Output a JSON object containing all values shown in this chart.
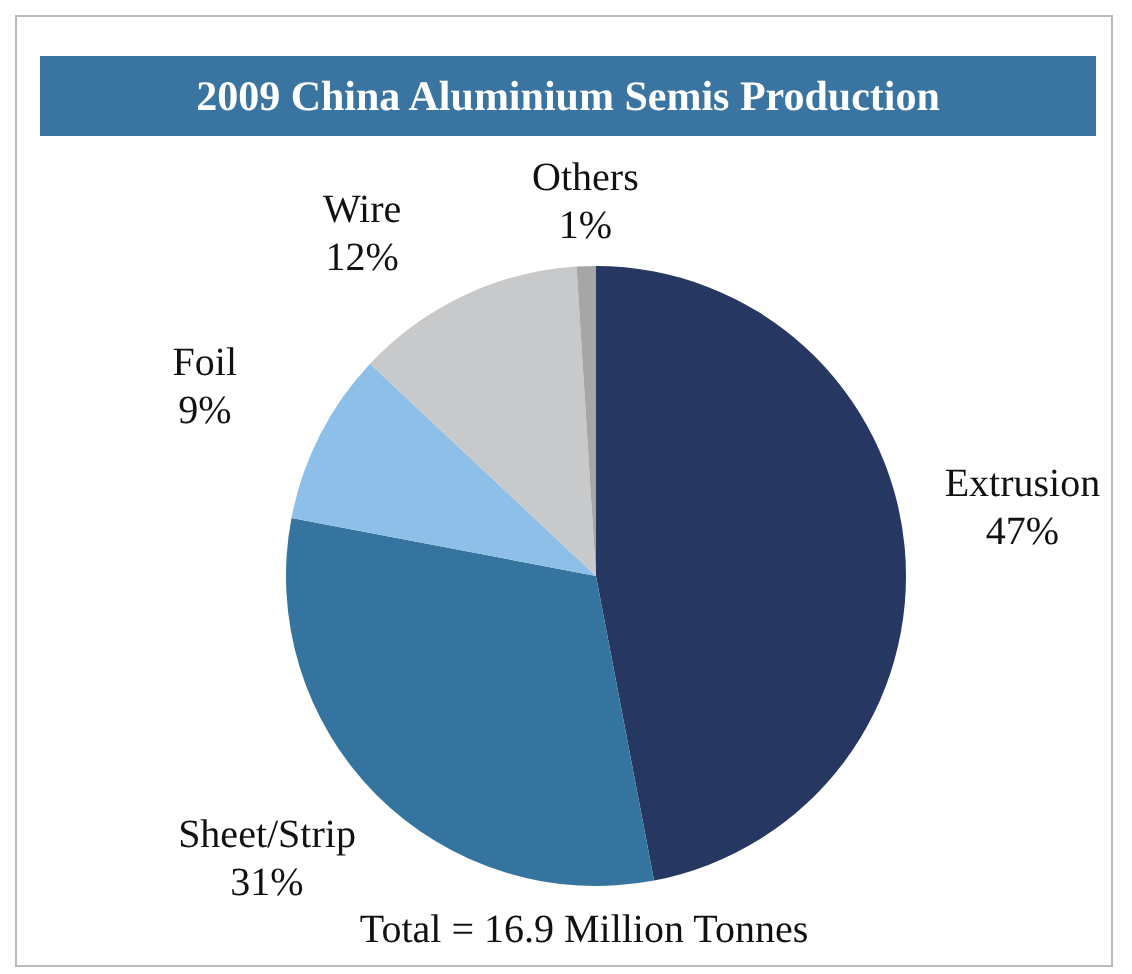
{
  "chart_data": {
    "type": "pie",
    "title": "2009 China Aluminium Semis Production",
    "categories": [
      "Extrusion",
      "Sheet/Strip",
      "Foil",
      "Wire",
      "Others"
    ],
    "values": [
      47,
      31,
      9,
      12,
      1
    ],
    "value_labels": [
      "47%",
      "31%",
      "9%",
      "12%",
      "1%"
    ],
    "colors": [
      "#263861",
      "#35749f",
      "#8dbfe8",
      "#c8c9cb",
      "#a6a6a6"
    ],
    "annotations": [
      "Total = 16.9 Million Tonnes"
    ]
  }
}
